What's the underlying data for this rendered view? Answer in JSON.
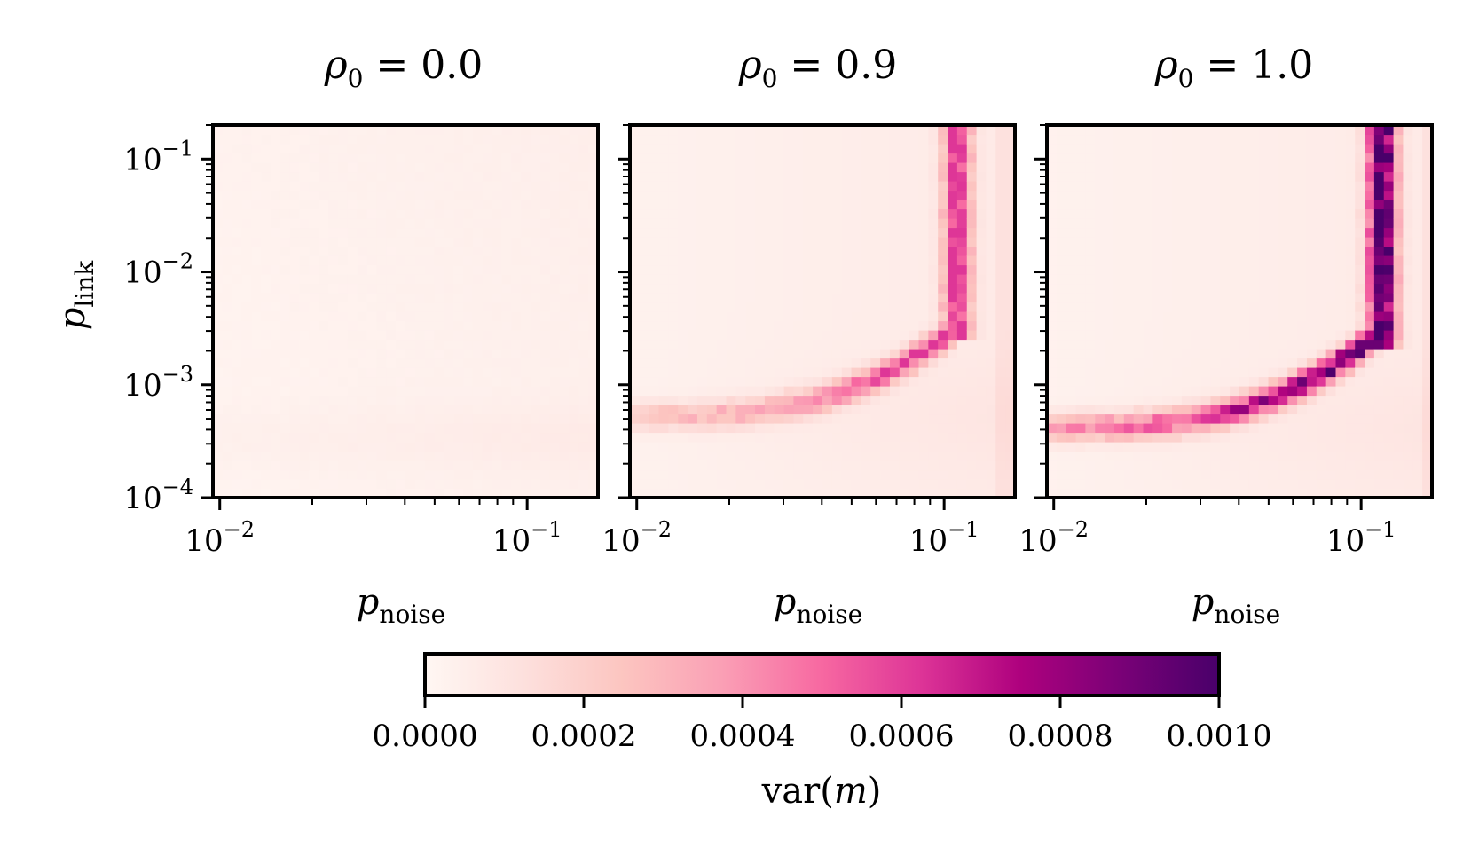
{
  "chart_data": [
    {
      "type": "heatmap",
      "title": "ρ0 = 0.0",
      "rho0": 0.0,
      "xlabel": "p_noise",
      "ylabel": "p_link",
      "xscale": "log",
      "yscale": "log",
      "xlim": [
        0.0095,
        0.17
      ],
      "ylim": [
        0.0001,
        0.2
      ],
      "xticks": [
        {
          "value": 0.01,
          "label": "10−2"
        },
        {
          "value": 0.1,
          "label": "10−1"
        }
      ],
      "yticks": [
        {
          "value": 0.0001,
          "label": "10−4"
        },
        {
          "value": 0.001,
          "label": "10−3"
        },
        {
          "value": 0.01,
          "label": "10−2"
        },
        {
          "value": 0.1,
          "label": "10−1"
        }
      ],
      "grid_size": [
        40,
        40
      ],
      "value_pattern": "low uniform variance (~0.00002-0.00006) everywhere; slightly higher along bottom rows (p_link ≈ 2e-4 to 4e-4) and toward high p_noise",
      "peak_value": 7e-05
    },
    {
      "type": "heatmap",
      "title": "ρ0 = 0.9",
      "rho0": 0.9,
      "xlabel": "p_noise",
      "xscale": "log",
      "yscale": "log",
      "xlim": [
        0.0095,
        0.17
      ],
      "ylim": [
        0.0001,
        0.2
      ],
      "xticks": [
        {
          "value": 0.01,
          "label": "10−2"
        },
        {
          "value": 0.1,
          "label": "10−1"
        }
      ],
      "grid_size": [
        40,
        40
      ],
      "value_pattern": "L-shaped ridge: horizontal branch near p_link ≈ 2.5e-4 at low p_noise rising to ~1e-3 near p_noise ≈ 0.08, vertical branch at p_noise ≈ 0.11-0.12 for p_link ≥ 1e-3",
      "peak_value": 0.00062
    },
    {
      "type": "heatmap",
      "title": "ρ0 = 1.0",
      "rho0": 1.0,
      "xlabel": "p_noise",
      "xscale": "log",
      "yscale": "log",
      "xlim": [
        0.0095,
        0.17
      ],
      "ylim": [
        0.0001,
        0.2
      ],
      "xticks": [
        {
          "value": 0.01,
          "label": "10−2"
        },
        {
          "value": 0.1,
          "label": "10−1"
        }
      ],
      "grid_size": [
        40,
        40
      ],
      "value_pattern": "L-shaped ridge like ρ0 = 0.9 but stronger: horizontal branch near p_link ≈ 2.2e-4, vertical branch at p_noise ≈ 0.12 with darkest values for p_link between 3e-3 and 1e-1",
      "peak_value": 0.001
    }
  ],
  "colorbar": {
    "label": "var(m)",
    "colormap": "RdPu",
    "orientation": "horizontal",
    "range": [
      0.0,
      0.001
    ],
    "ticks": [
      {
        "value": 0.0,
        "label": "0.0000"
      },
      {
        "value": 0.0002,
        "label": "0.0002"
      },
      {
        "value": 0.0004,
        "label": "0.0004"
      },
      {
        "value": 0.0006,
        "label": "0.0006"
      },
      {
        "value": 0.0008,
        "label": "0.0008"
      },
      {
        "value": 0.001,
        "label": "0.0010"
      }
    ],
    "colors": [
      "#fff7f3",
      "#fde0dd",
      "#fcc5c0",
      "#fa9fb5",
      "#f768a1",
      "#dd3497",
      "#ae017e",
      "#7a0177",
      "#49006a"
    ]
  },
  "labels": {
    "titles": [
      {
        "sym": "ρ",
        "sub": "0",
        "rest": " = 0.0"
      },
      {
        "sym": "ρ",
        "sub": "0",
        "rest": " = 0.9"
      },
      {
        "sym": "ρ",
        "sub": "0",
        "rest": " = 1.0"
      }
    ],
    "xlabel": {
      "sym": "p",
      "sub": "noise"
    },
    "ylabel": {
      "sym": "p",
      "sub": "link"
    },
    "tick_base": "10",
    "cbar_label": {
      "pre": "var(",
      "var": "m",
      "post": ")"
    }
  }
}
